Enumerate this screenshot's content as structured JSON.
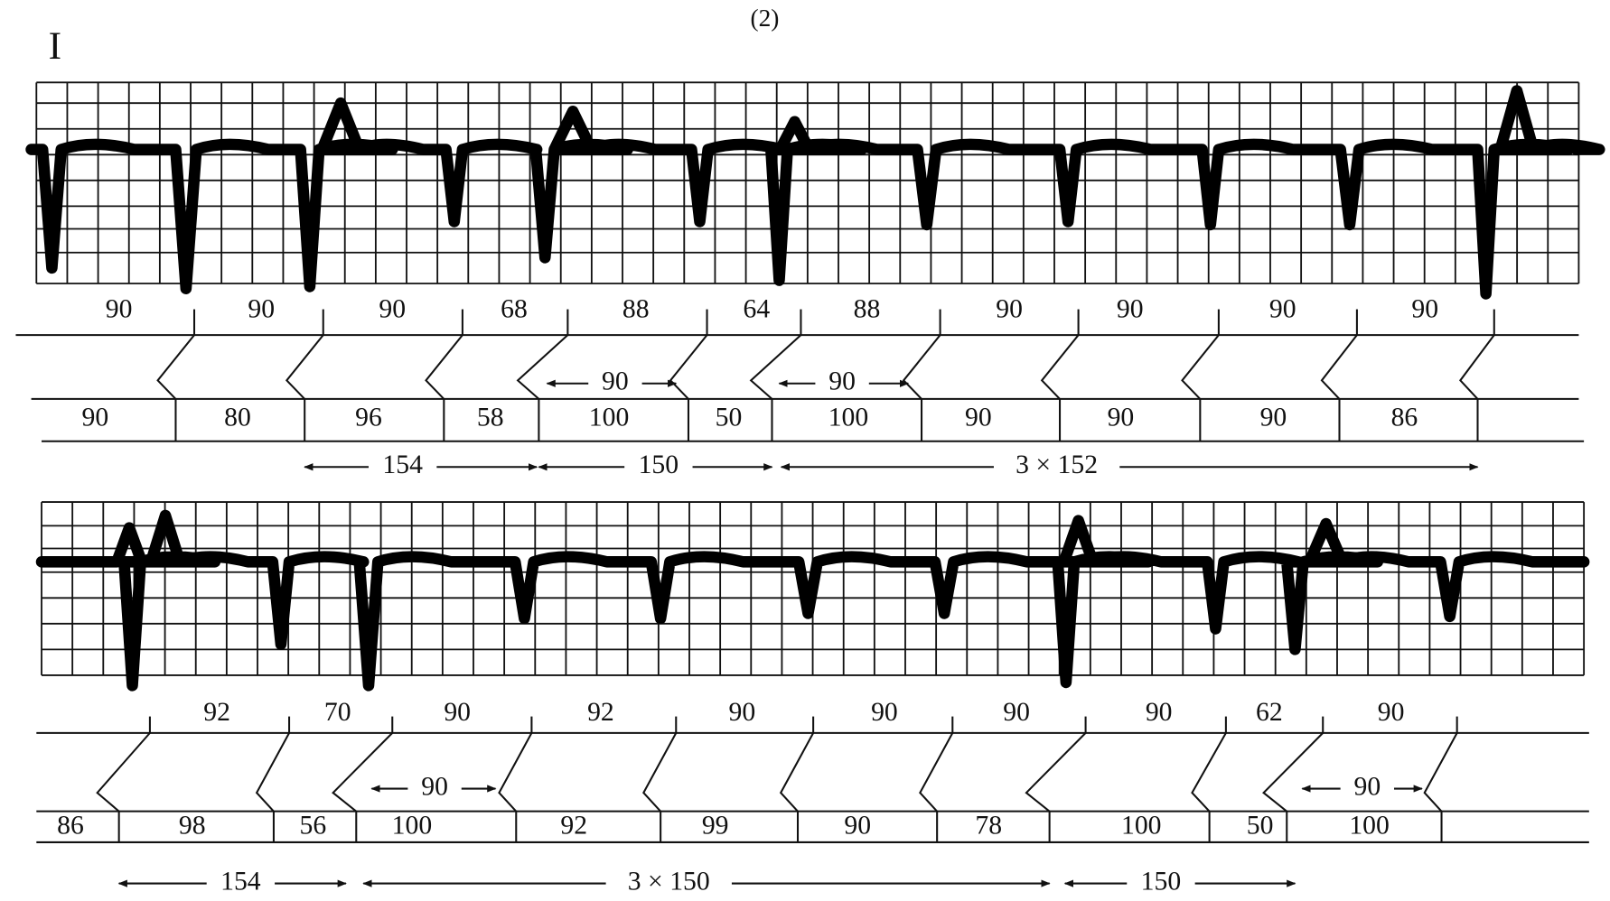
{
  "title": "(2)",
  "lead": "I",
  "strips": [
    {
      "atrial": [
        90,
        90,
        90,
        68,
        88,
        64,
        88,
        90,
        90,
        90,
        90
      ],
      "ventricular": [
        90,
        80,
        96,
        58,
        100,
        50,
        100,
        90,
        90,
        90,
        86
      ],
      "inner": [
        90,
        90
      ],
      "spans": [
        154,
        150,
        "3 × 152"
      ]
    },
    {
      "atrial": [
        92,
        70,
        90,
        92,
        90,
        90,
        90,
        90,
        62,
        90
      ],
      "ventricular": [
        86,
        98,
        56,
        100,
        92,
        99,
        90,
        78,
        100,
        50,
        100
      ],
      "inner": [
        90,
        90
      ],
      "spans": [
        154,
        "3 × 150",
        150
      ]
    }
  ]
}
